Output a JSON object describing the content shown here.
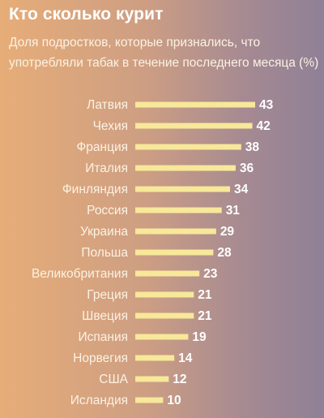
{
  "header": {
    "title": "Кто сколько курит",
    "subtitle": "Доля подростков, которые признались, что употребляли табак в течение последнего месяца (%)"
  },
  "colors": {
    "bar": "#f7e89a",
    "text": "#fbf2e2",
    "value_text": "#ffffff",
    "background_left": "#e7ad78",
    "background_right": "#8f8096"
  },
  "chart_data": {
    "type": "bar",
    "orientation": "horizontal",
    "title": "Кто сколько курит",
    "subtitle": "Доля подростков, которые признались, что употребляли табак в течение последнего месяца (%)",
    "categories": [
      "Латвия",
      "Чехия",
      "Франция",
      "Италия",
      "Финляндия",
      "Россия",
      "Украина",
      "Польша",
      "Великобритания",
      "Греция",
      "Швеция",
      "Испания",
      "Норвегия",
      "США",
      "Исландия"
    ],
    "values": [
      43,
      42,
      38,
      36,
      34,
      31,
      29,
      28,
      23,
      21,
      21,
      19,
      14,
      12,
      10
    ],
    "xlim": [
      0,
      43
    ],
    "grid": false,
    "legend": "none"
  }
}
